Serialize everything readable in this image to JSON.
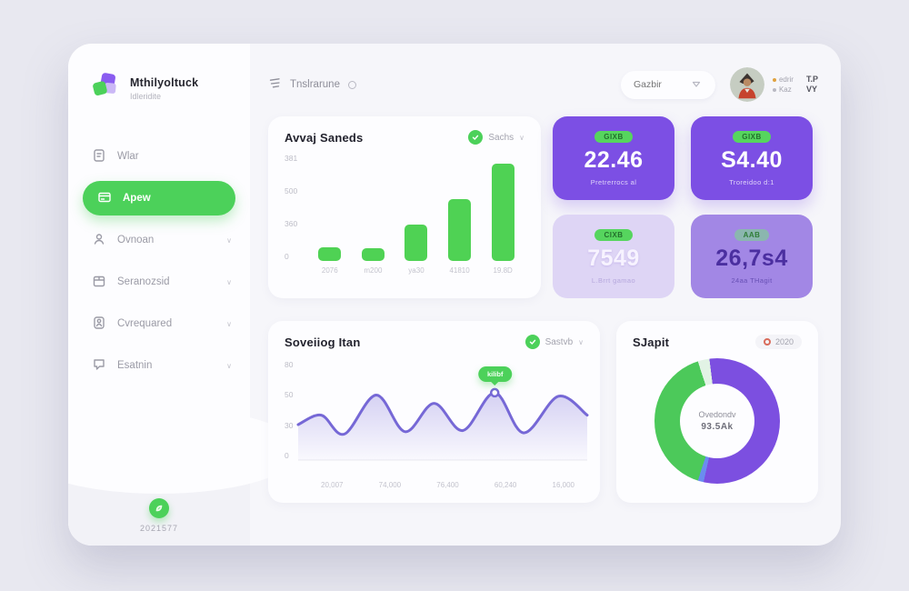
{
  "app": {
    "accent_green": "#4cd15a",
    "accent_purple": "#7c4fe4",
    "page_bg": "#e8e8f0"
  },
  "sidebar": {
    "logo": {
      "title": "Mthilyoltuck",
      "subtitle": "Idleridite"
    },
    "items": [
      {
        "label": "Wlar"
      },
      {
        "label": "Apew"
      },
      {
        "label": "Ovnoan"
      },
      {
        "label": "Seranozsid"
      },
      {
        "label": "Cvrequared"
      },
      {
        "label": "Esatnin"
      }
    ],
    "footer": {
      "text": "2021577"
    }
  },
  "header": {
    "title": "Tnslrarune",
    "search_placeholder": "Gazbir",
    "user": {
      "name_line1": "edrir",
      "name_line2": "Kaz",
      "meta_line1": "T.P",
      "meta_line2": "VY"
    }
  },
  "bar_card": {
    "title": "Avvaj Saneds",
    "dropdown_label": "Sachs"
  },
  "stat_cards": [
    {
      "badge": "GIXB",
      "value": "22.46",
      "label": "Pretrerrocs al"
    },
    {
      "badge": "GIXB",
      "value": "S4.40",
      "label": "Troreidoo d:1"
    },
    {
      "badge": "CIXB",
      "value": "7549",
      "label": "L.Brrt gamao"
    },
    {
      "badge": "AAB",
      "value": "26,7s4",
      "label": "24aa THagit"
    }
  ],
  "line_card": {
    "title": "Soveiiog Itan",
    "dropdown_label": "Sastvb"
  },
  "donut_card": {
    "title": "SJapit",
    "badge_label": "2020",
    "center_line1": "Ovedondv",
    "center_line2": "93.5Ak"
  },
  "chart_data": [
    {
      "type": "bar",
      "title": "Avvaj Saneds",
      "categories": [
        "2076",
        "m200",
        "ya30",
        "41810",
        "19.8D"
      ],
      "values": [
        40,
        38,
        108,
        185,
        290
      ],
      "ylim": [
        0,
        320
      ],
      "y_ticks_top_to_bottom": [
        "381",
        "500",
        "360",
        "0"
      ],
      "bar_color": "#4fd254",
      "grid": false,
      "legend": "none"
    },
    {
      "type": "area",
      "title": "Soveiiog Itan",
      "x_ticks": [
        "20,007",
        "74,000",
        "76,400",
        "60,240",
        "16,000"
      ],
      "y_ticks_top_to_bottom": [
        "80",
        "50",
        "30",
        "0"
      ],
      "ylim": [
        0,
        80
      ],
      "points": [
        [
          0,
          30
        ],
        [
          0.08,
          38
        ],
        [
          0.16,
          22
        ],
        [
          0.27,
          55
        ],
        [
          0.37,
          24
        ],
        [
          0.47,
          48
        ],
        [
          0.57,
          25
        ],
        [
          0.68,
          57
        ],
        [
          0.78,
          23
        ],
        [
          0.9,
          54
        ],
        [
          1,
          38
        ]
      ],
      "tooltip": {
        "label": "kilibf",
        "point_index": 7
      },
      "line_color": "#7668d6",
      "fill_color": "rgba(118,104,214,0.18)",
      "legend": "none"
    },
    {
      "type": "pie",
      "title": "SJapit",
      "slices": [
        {
          "name": "purple",
          "value": 53.5,
          "color": "#7c4fe0"
        },
        {
          "name": "blue",
          "value": 1.5,
          "color": "#6b8cef"
        },
        {
          "name": "green",
          "value": 40,
          "color": "#4cc95a"
        },
        {
          "name": "notch",
          "value": 3,
          "color": "#e2f3e5"
        },
        {
          "name": "purple2",
          "value": 2,
          "color": "#7c4fe0"
        }
      ],
      "center_text": [
        "Ovedondv",
        "93.5Ak"
      ]
    }
  ]
}
